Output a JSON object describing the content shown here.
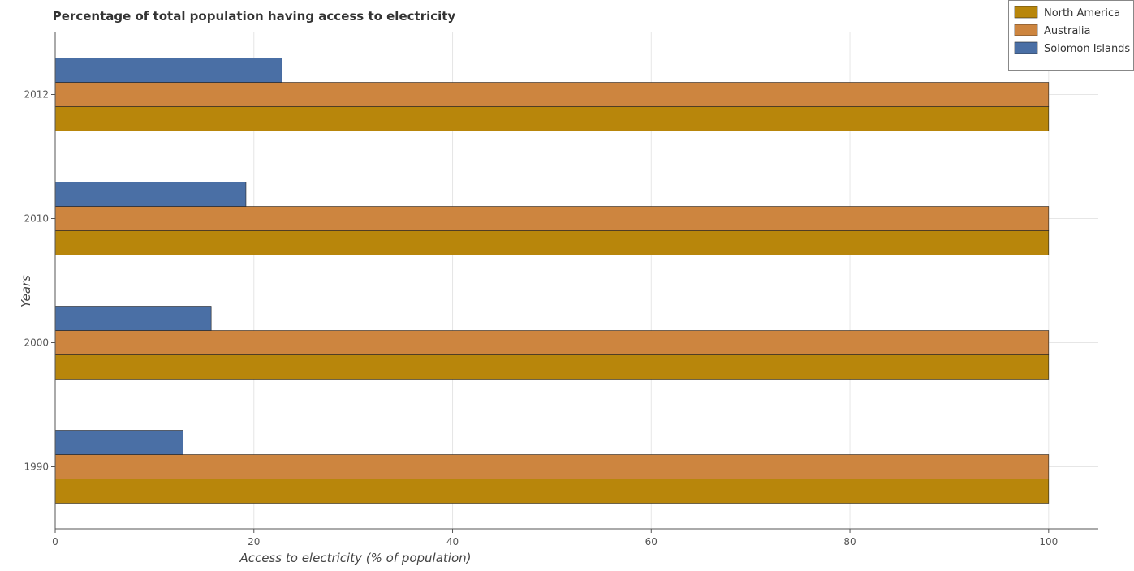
{
  "chart_data": {
    "type": "bar",
    "orientation": "horizontal",
    "title": "Percentage of total population having access to electricity",
    "xlabel": "Access to electricity (% of population)",
    "ylabel": "Years",
    "categories": [
      "1990",
      "2000",
      "2010",
      "2012"
    ],
    "series": [
      {
        "name": "North America",
        "color": "#b8860b",
        "values": [
          100,
          100,
          100,
          100
        ]
      },
      {
        "name": "Australia",
        "color": "#cd853f",
        "values": [
          100,
          100,
          100,
          100
        ]
      },
      {
        "name": "Solomon Islands",
        "color": "#4a6fa5",
        "values": [
          12.87,
          15.7,
          19.2,
          22.82
        ]
      }
    ],
    "xlim": [
      0,
      105
    ],
    "xticks": [
      0,
      20,
      40,
      60,
      80,
      100
    ],
    "grid": true,
    "legend_position": "top-right"
  }
}
